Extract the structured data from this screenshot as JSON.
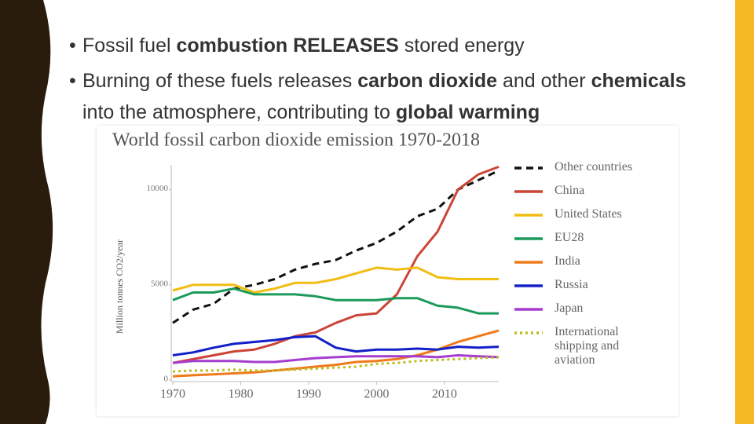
{
  "slide": {
    "bullets": [
      [
        {
          "text": "Fossil fuel ",
          "bold": false
        },
        {
          "text": "combustion RELEASES",
          "bold": true
        },
        {
          "text": " stored energy",
          "bold": false
        }
      ],
      [
        {
          "text": "Burning of these fuels releases ",
          "bold": false
        },
        {
          "text": "carbon dioxide",
          "bold": true
        },
        {
          "text": " and other ",
          "bold": false
        },
        {
          "text": "chemicals",
          "bold": true
        },
        {
          "text": " into the atmosphere, contributing to ",
          "bold": false
        },
        {
          "text": "global warming",
          "bold": true
        }
      ]
    ]
  },
  "chart_data": {
    "type": "line",
    "title": "World fossil carbon dioxide emission 1970-2018",
    "y_label": "Million tonnes CO2/year",
    "x": [
      1970,
      1973,
      1976,
      1979,
      1982,
      1985,
      1988,
      1991,
      1994,
      1997,
      2000,
      2003,
      2006,
      2009,
      2012,
      2015,
      2018
    ],
    "xlim": [
      1970,
      2018
    ],
    "xticks": [
      1970,
      1980,
      1990,
      2000,
      2010
    ],
    "ylim": [
      0,
      11300
    ],
    "yticks": [
      0,
      5000,
      10000
    ],
    "series": [
      {
        "name": "Other countries",
        "color": "#111111",
        "style": "dashed",
        "values": [
          3000,
          3700,
          4000,
          4800,
          5000,
          5300,
          5800,
          6100,
          6300,
          6800,
          7200,
          7800,
          8600,
          9000,
          10000,
          10500,
          11000
        ]
      },
      {
        "name": "China",
        "color": "#cc4437",
        "style": "solid",
        "values": [
          900,
          1100,
          1300,
          1500,
          1600,
          1900,
          2300,
          2500,
          3000,
          3400,
          3500,
          4500,
          6500,
          7800,
          10000,
          10800,
          11200
        ]
      },
      {
        "name": "United States",
        "color": "#f2bd12",
        "style": "solid",
        "values": [
          4700,
          5000,
          5000,
          5000,
          4600,
          4800,
          5100,
          5100,
          5300,
          5600,
          5900,
          5800,
          5900,
          5400,
          5300,
          5300,
          5300
        ]
      },
      {
        "name": "EU28",
        "color": "#1b9a5a",
        "style": "solid",
        "values": [
          4200,
          4600,
          4600,
          4800,
          4500,
          4500,
          4500,
          4400,
          4200,
          4200,
          4200,
          4300,
          4300,
          3900,
          3800,
          3500,
          3500
        ]
      },
      {
        "name": "India",
        "color": "#ef7a1a",
        "style": "solid",
        "values": [
          200,
          250,
          300,
          350,
          400,
          500,
          600,
          700,
          800,
          950,
          1000,
          1100,
          1300,
          1600,
          2000,
          2300,
          2600
        ]
      },
      {
        "name": "Russia",
        "color": "#1220c8",
        "style": "solid",
        "values": [
          1300,
          1450,
          1700,
          1900,
          2000,
          2100,
          2250,
          2300,
          1700,
          1500,
          1600,
          1600,
          1650,
          1600,
          1750,
          1700,
          1750
        ]
      },
      {
        "name": "Japan",
        "color": "#a63ccf",
        "style": "solid",
        "values": [
          900,
          1000,
          1000,
          1000,
          950,
          950,
          1050,
          1150,
          1200,
          1250,
          1250,
          1250,
          1250,
          1200,
          1300,
          1250,
          1200
        ]
      },
      {
        "name": "International shipping and aviation",
        "color": "#bcbc22",
        "style": "dotted",
        "values": [
          450,
          500,
          500,
          550,
          500,
          500,
          550,
          600,
          650,
          700,
          850,
          900,
          1000,
          1050,
          1100,
          1150,
          1200
        ]
      }
    ]
  }
}
